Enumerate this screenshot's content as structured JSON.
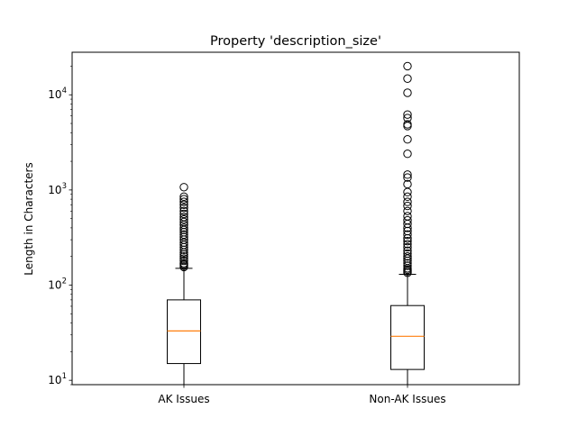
{
  "chart_data": {
    "type": "boxplot",
    "title": "Property 'description_size'",
    "xlabel": "",
    "ylabel": "Length in Characters",
    "yscale": "log",
    "ylim": [
      9,
      28000
    ],
    "ytick_labels": [
      {
        "base": "10",
        "exp": "1",
        "value": 10
      },
      {
        "base": "10",
        "exp": "2",
        "value": 100
      },
      {
        "base": "10",
        "exp": "3",
        "value": 1000
      },
      {
        "base": "10",
        "exp": "4",
        "value": 10000
      }
    ],
    "grid": false,
    "categories": [
      "AK Issues",
      "Non-AK Issues"
    ],
    "colors": {
      "box": "#000000",
      "median": "#ff7f0e",
      "frame": "#000000"
    },
    "boxes": [
      {
        "label": "AK Issues",
        "whisker_low": 9,
        "q1": 15,
        "median": 33,
        "q3": 70,
        "whisker_high": 150,
        "outliers": [
          155,
          160,
          165,
          170,
          180,
          190,
          200,
          210,
          220,
          235,
          250,
          265,
          280,
          300,
          320,
          340,
          360,
          380,
          400,
          430,
          460,
          490,
          520,
          560,
          600,
          650,
          700,
          750,
          800,
          850,
          1070
        ]
      },
      {
        "label": "Non-AK Issues",
        "whisker_low": 9,
        "q1": 13,
        "median": 29,
        "q3": 61,
        "whisker_high": 130,
        "outliers": [
          135,
          140,
          145,
          150,
          160,
          170,
          180,
          190,
          200,
          215,
          230,
          250,
          270,
          290,
          310,
          340,
          370,
          400,
          440,
          480,
          530,
          600,
          680,
          750,
          850,
          950,
          1150,
          1350,
          1450,
          2400,
          3400,
          4700,
          4900,
          5700,
          6200,
          10500,
          14800,
          20000
        ]
      }
    ]
  }
}
